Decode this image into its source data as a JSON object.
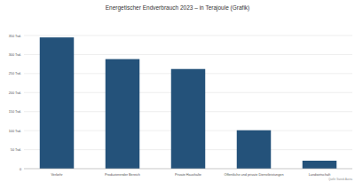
{
  "chart_data": {
    "type": "bar",
    "title": "Energetischer Endverbrauch 2023 – in Terajoule (Grafik)",
    "source": "Quelle: Statistik Austria",
    "categories": [
      "Verkehr",
      "Produzierender Bereich",
      "Private Haushalte",
      "Öffentliche und private Dienstleistungen",
      "Landwirtschaft"
    ],
    "values": [
      345000,
      288000,
      262000,
      101000,
      21000
    ],
    "color": "#24527a",
    "ylim": [
      0,
      350000
    ],
    "yticks": [
      0,
      {
        "value": 50000,
        "label": "50 Tsd."
      },
      {
        "value": 100000,
        "label": "100 Tsd."
      },
      {
        "value": 150000,
        "label": "150 Tsd."
      },
      {
        "value": 200000,
        "label": "200 Tsd."
      },
      {
        "value": 250000,
        "label": "250 Tsd."
      },
      {
        "value": 300000,
        "label": "300 Tsd."
      },
      {
        "value": 350000,
        "label": "350 Tsd."
      }
    ],
    "grid": true
  }
}
